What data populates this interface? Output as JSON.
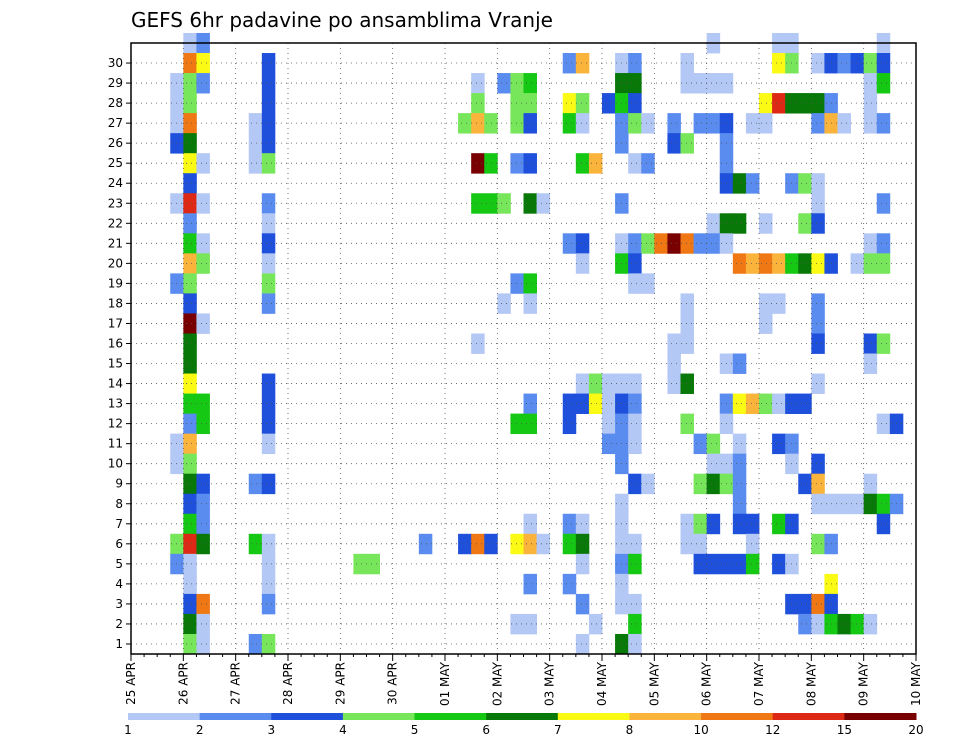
{
  "chart_data": {
    "type": "heatmap",
    "title": "GEFS 6hr padavine po ansamblima Vranje",
    "xlabel": "",
    "ylabel": "",
    "x_ticks": [
      "25 APR",
      "26 APR",
      "27 APR",
      "28 APR",
      "29 APR",
      "30 APR",
      "01 MAY",
      "02 MAY",
      "03 MAY",
      "04 MAY",
      "05 MAY",
      "06 MAY",
      "07 MAY",
      "08 MAY",
      "09 MAY",
      "10 MAY"
    ],
    "y_ticks": [
      1,
      2,
      3,
      4,
      5,
      6,
      7,
      8,
      9,
      10,
      11,
      12,
      13,
      14,
      15,
      16,
      17,
      18,
      19,
      20,
      21,
      22,
      23,
      24,
      25,
      26,
      27,
      28,
      29,
      30
    ],
    "step_hours": 6,
    "steps": 60,
    "members": 30,
    "grid": true,
    "color_levels": [
      1,
      2,
      3,
      4,
      5,
      6,
      7,
      8,
      10,
      12,
      15,
      20
    ],
    "colors": [
      "#b4c8f5",
      "#5a8cf0",
      "#1e50dc",
      "#78e65a",
      "#14c814",
      "#087808",
      "#fafa14",
      "#fab43c",
      "#f07814",
      "#dc2814",
      "#780000"
    ],
    "cells": [
      [
        4,
        30,
        1
      ],
      [
        5,
        30,
        2
      ],
      [
        44,
        30,
        1
      ],
      [
        49,
        30,
        1
      ],
      [
        50,
        30,
        1
      ],
      [
        57,
        30,
        1
      ],
      [
        4,
        29,
        9
      ],
      [
        5,
        29,
        7
      ],
      [
        10,
        29,
        3
      ],
      [
        33,
        29,
        2
      ],
      [
        34,
        29,
        8
      ],
      [
        37,
        29,
        1
      ],
      [
        38,
        29,
        2
      ],
      [
        42,
        29,
        1
      ],
      [
        49,
        29,
        7
      ],
      [
        50,
        29,
        4
      ],
      [
        52,
        29,
        1
      ],
      [
        53,
        29,
        3
      ],
      [
        54,
        29,
        2
      ],
      [
        55,
        29,
        3
      ],
      [
        56,
        29,
        4
      ],
      [
        57,
        29,
        3
      ],
      [
        3,
        28,
        1
      ],
      [
        4,
        28,
        4
      ],
      [
        5,
        28,
        2
      ],
      [
        10,
        28,
        3
      ],
      [
        26,
        28,
        1
      ],
      [
        28,
        28,
        2
      ],
      [
        29,
        28,
        4
      ],
      [
        30,
        28,
        5
      ],
      [
        37,
        28,
        6
      ],
      [
        38,
        28,
        6
      ],
      [
        42,
        28,
        1
      ],
      [
        43,
        28,
        1
      ],
      [
        44,
        28,
        1
      ],
      [
        45,
        28,
        1
      ],
      [
        56,
        28,
        1
      ],
      [
        57,
        28,
        5
      ],
      [
        3,
        27,
        1
      ],
      [
        4,
        27,
        4
      ],
      [
        10,
        27,
        3
      ],
      [
        26,
        27,
        4
      ],
      [
        29,
        27,
        4
      ],
      [
        30,
        27,
        4
      ],
      [
        33,
        27,
        7
      ],
      [
        34,
        27,
        4
      ],
      [
        36,
        27,
        3
      ],
      [
        37,
        27,
        5
      ],
      [
        38,
        27,
        3
      ],
      [
        48,
        27,
        7
      ],
      [
        49,
        27,
        10
      ],
      [
        50,
        27,
        6
      ],
      [
        51,
        27,
        6
      ],
      [
        52,
        27,
        6
      ],
      [
        53,
        27,
        2
      ],
      [
        56,
        27,
        1
      ],
      [
        3,
        26,
        1
      ],
      [
        4,
        26,
        9
      ],
      [
        9,
        26,
        1
      ],
      [
        10,
        26,
        3
      ],
      [
        25,
        26,
        4
      ],
      [
        26,
        26,
        8
      ],
      [
        27,
        26,
        4
      ],
      [
        29,
        26,
        4
      ],
      [
        30,
        26,
        3
      ],
      [
        33,
        26,
        5
      ],
      [
        34,
        26,
        1
      ],
      [
        37,
        26,
        2
      ],
      [
        38,
        26,
        4
      ],
      [
        39,
        26,
        1
      ],
      [
        41,
        26,
        2
      ],
      [
        43,
        26,
        2
      ],
      [
        44,
        26,
        2
      ],
      [
        45,
        26,
        3
      ],
      [
        47,
        26,
        1
      ],
      [
        48,
        26,
        1
      ],
      [
        52,
        26,
        2
      ],
      [
        53,
        26,
        8
      ],
      [
        54,
        26,
        1
      ],
      [
        56,
        26,
        1
      ],
      [
        57,
        26,
        2
      ],
      [
        3,
        25,
        3
      ],
      [
        4,
        25,
        6
      ],
      [
        9,
        25,
        1
      ],
      [
        10,
        25,
        3
      ],
      [
        37,
        25,
        2
      ],
      [
        41,
        25,
        3
      ],
      [
        42,
        25,
        4
      ],
      [
        45,
        25,
        2
      ],
      [
        4,
        24,
        7
      ],
      [
        5,
        24,
        1
      ],
      [
        9,
        24,
        1
      ],
      [
        10,
        24,
        4
      ],
      [
        26,
        24,
        11
      ],
      [
        27,
        24,
        5
      ],
      [
        29,
        24,
        2
      ],
      [
        30,
        24,
        3
      ],
      [
        34,
        24,
        5
      ],
      [
        35,
        24,
        8
      ],
      [
        38,
        24,
        1
      ],
      [
        39,
        24,
        2
      ],
      [
        45,
        24,
        2
      ],
      [
        4,
        23,
        3
      ],
      [
        45,
        23,
        3
      ],
      [
        46,
        23,
        6
      ],
      [
        47,
        23,
        2
      ],
      [
        50,
        23,
        2
      ],
      [
        51,
        23,
        4
      ],
      [
        52,
        23,
        1
      ],
      [
        3,
        22,
        1
      ],
      [
        4,
        22,
        10
      ],
      [
        5,
        22,
        1
      ],
      [
        10,
        22,
        2
      ],
      [
        26,
        22,
        5
      ],
      [
        27,
        22,
        5
      ],
      [
        28,
        22,
        4
      ],
      [
        30,
        22,
        6
      ],
      [
        31,
        22,
        1
      ],
      [
        37,
        22,
        2
      ],
      [
        52,
        22,
        1
      ],
      [
        57,
        22,
        2
      ],
      [
        4,
        21,
        2
      ],
      [
        10,
        21,
        1
      ],
      [
        44,
        21,
        1
      ],
      [
        45,
        21,
        6
      ],
      [
        46,
        21,
        6
      ],
      [
        48,
        21,
        1
      ],
      [
        51,
        21,
        4
      ],
      [
        52,
        21,
        3
      ],
      [
        4,
        20,
        5
      ],
      [
        5,
        20,
        1
      ],
      [
        10,
        20,
        3
      ],
      [
        33,
        20,
        2
      ],
      [
        34,
        20,
        3
      ],
      [
        37,
        20,
        1
      ],
      [
        38,
        20,
        2
      ],
      [
        39,
        20,
        4
      ],
      [
        40,
        20,
        9
      ],
      [
        41,
        20,
        11
      ],
      [
        42,
        20,
        9
      ],
      [
        43,
        20,
        2
      ],
      [
        44,
        20,
        2
      ],
      [
        45,
        20,
        1
      ],
      [
        56,
        20,
        1
      ],
      [
        57,
        20,
        2
      ],
      [
        4,
        19,
        8
      ],
      [
        5,
        19,
        4
      ],
      [
        10,
        19,
        1
      ],
      [
        34,
        19,
        1
      ],
      [
        37,
        19,
        5
      ],
      [
        38,
        19,
        3
      ],
      [
        46,
        19,
        9
      ],
      [
        47,
        19,
        8
      ],
      [
        48,
        19,
        9
      ],
      [
        49,
        19,
        8
      ],
      [
        50,
        19,
        5
      ],
      [
        51,
        19,
        6
      ],
      [
        52,
        19,
        7
      ],
      [
        53,
        19,
        3
      ],
      [
        55,
        19,
        1
      ],
      [
        56,
        19,
        4
      ],
      [
        57,
        19,
        4
      ],
      [
        3,
        18,
        2
      ],
      [
        4,
        18,
        4
      ],
      [
        10,
        18,
        4
      ],
      [
        29,
        18,
        2
      ],
      [
        30,
        18,
        5
      ],
      [
        38,
        18,
        1
      ],
      [
        39,
        18,
        1
      ],
      [
        4,
        17,
        3
      ],
      [
        10,
        17,
        2
      ],
      [
        28,
        17,
        1
      ],
      [
        30,
        17,
        1
      ],
      [
        42,
        17,
        1
      ],
      [
        48,
        17,
        1
      ],
      [
        49,
        17,
        1
      ],
      [
        52,
        17,
        2
      ],
      [
        4,
        16,
        11
      ],
      [
        5,
        16,
        1
      ],
      [
        42,
        16,
        1
      ],
      [
        48,
        16,
        1
      ],
      [
        52,
        16,
        2
      ],
      [
        4,
        15,
        6
      ],
      [
        26,
        15,
        1
      ],
      [
        41,
        15,
        1
      ],
      [
        42,
        15,
        1
      ],
      [
        52,
        15,
        3
      ],
      [
        56,
        15,
        3
      ],
      [
        57,
        15,
        4
      ],
      [
        4,
        14,
        6
      ],
      [
        41,
        14,
        1
      ],
      [
        45,
        14,
        1
      ],
      [
        46,
        14,
        2
      ],
      [
        56,
        14,
        1
      ],
      [
        4,
        13,
        7
      ],
      [
        10,
        13,
        3
      ],
      [
        34,
        13,
        1
      ],
      [
        35,
        13,
        4
      ],
      [
        36,
        13,
        1
      ],
      [
        37,
        13,
        1
      ],
      [
        38,
        13,
        1
      ],
      [
        41,
        13,
        1
      ],
      [
        42,
        13,
        6
      ],
      [
        52,
        13,
        1
      ],
      [
        4,
        12,
        5
      ],
      [
        5,
        12,
        5
      ],
      [
        10,
        12,
        3
      ],
      [
        30,
        12,
        2
      ],
      [
        33,
        12,
        3
      ],
      [
        34,
        12,
        3
      ],
      [
        35,
        12,
        7
      ],
      [
        36,
        12,
        1
      ],
      [
        37,
        12,
        3
      ],
      [
        38,
        12,
        2
      ],
      [
        45,
        12,
        2
      ],
      [
        46,
        12,
        7
      ],
      [
        47,
        12,
        8
      ],
      [
        48,
        12,
        4
      ],
      [
        49,
        12,
        1
      ],
      [
        50,
        12,
        3
      ],
      [
        51,
        12,
        3
      ],
      [
        4,
        11,
        2
      ],
      [
        5,
        11,
        5
      ],
      [
        10,
        11,
        3
      ],
      [
        29,
        11,
        5
      ],
      [
        30,
        11,
        5
      ],
      [
        33,
        11,
        3
      ],
      [
        36,
        11,
        1
      ],
      [
        37,
        11,
        2
      ],
      [
        38,
        11,
        1
      ],
      [
        42,
        11,
        4
      ],
      [
        45,
        11,
        1
      ],
      [
        57,
        11,
        1
      ],
      [
        58,
        11,
        3
      ],
      [
        3,
        10,
        1
      ],
      [
        4,
        10,
        8
      ],
      [
        10,
        10,
        1
      ],
      [
        36,
        10,
        2
      ],
      [
        37,
        10,
        2
      ],
      [
        38,
        10,
        1
      ],
      [
        43,
        10,
        2
      ],
      [
        44,
        10,
        4
      ],
      [
        46,
        10,
        1
      ],
      [
        49,
        10,
        3
      ],
      [
        50,
        10,
        2
      ],
      [
        3,
        9,
        1
      ],
      [
        4,
        9,
        4
      ],
      [
        37,
        9,
        2
      ],
      [
        44,
        9,
        1
      ],
      [
        45,
        9,
        1
      ],
      [
        46,
        9,
        2
      ],
      [
        50,
        9,
        1
      ],
      [
        52,
        9,
        3
      ],
      [
        4,
        8,
        6
      ],
      [
        5,
        8,
        3
      ],
      [
        9,
        8,
        2
      ],
      [
        10,
        8,
        3
      ],
      [
        38,
        8,
        3
      ],
      [
        39,
        8,
        1
      ],
      [
        43,
        8,
        4
      ],
      [
        44,
        8,
        6
      ],
      [
        45,
        8,
        4
      ],
      [
        46,
        8,
        2
      ],
      [
        51,
        8,
        3
      ],
      [
        52,
        8,
        8
      ],
      [
        56,
        8,
        1
      ],
      [
        4,
        7,
        3
      ],
      [
        5,
        7,
        2
      ],
      [
        37,
        7,
        1
      ],
      [
        46,
        7,
        2
      ],
      [
        52,
        7,
        1
      ],
      [
        53,
        7,
        1
      ],
      [
        54,
        7,
        1
      ],
      [
        55,
        7,
        1
      ],
      [
        56,
        7,
        6
      ],
      [
        57,
        7,
        5
      ],
      [
        58,
        7,
        2
      ],
      [
        4,
        6,
        5
      ],
      [
        5,
        6,
        2
      ],
      [
        30,
        6,
        1
      ],
      [
        33,
        6,
        2
      ],
      [
        34,
        6,
        1
      ],
      [
        37,
        6,
        1
      ],
      [
        42,
        6,
        1
      ],
      [
        43,
        6,
        4
      ],
      [
        44,
        6,
        3
      ],
      [
        46,
        6,
        3
      ],
      [
        47,
        6,
        3
      ],
      [
        49,
        6,
        5
      ],
      [
        50,
        6,
        3
      ],
      [
        57,
        6,
        3
      ],
      [
        3,
        5,
        4
      ],
      [
        4,
        5,
        10
      ],
      [
        5,
        5,
        6
      ],
      [
        9,
        5,
        5
      ],
      [
        10,
        5,
        1
      ],
      [
        22,
        5,
        2
      ],
      [
        25,
        5,
        3
      ],
      [
        26,
        5,
        9
      ],
      [
        27,
        5,
        3
      ],
      [
        29,
        5,
        7
      ],
      [
        30,
        5,
        8
      ],
      [
        31,
        5,
        1
      ],
      [
        33,
        5,
        5
      ],
      [
        34,
        5,
        6
      ],
      [
        37,
        5,
        1
      ],
      [
        38,
        5,
        1
      ],
      [
        42,
        5,
        1
      ],
      [
        43,
        5,
        1
      ],
      [
        47,
        5,
        1
      ],
      [
        52,
        5,
        4
      ],
      [
        53,
        5,
        2
      ],
      [
        3,
        4,
        2
      ],
      [
        4,
        4,
        1
      ],
      [
        10,
        4,
        1
      ],
      [
        17,
        4,
        4
      ],
      [
        18,
        4,
        4
      ],
      [
        34,
        4,
        1
      ],
      [
        37,
        4,
        2
      ],
      [
        38,
        4,
        5
      ],
      [
        43,
        4,
        3
      ],
      [
        44,
        4,
        3
      ],
      [
        45,
        4,
        3
      ],
      [
        46,
        4,
        3
      ],
      [
        47,
        4,
        5
      ],
      [
        49,
        4,
        3
      ],
      [
        50,
        4,
        1
      ],
      [
        4,
        3,
        1
      ],
      [
        10,
        3,
        1
      ],
      [
        30,
        3,
        2
      ],
      [
        33,
        3,
        2
      ],
      [
        37,
        3,
        1
      ],
      [
        53,
        3,
        7
      ],
      [
        4,
        2,
        3
      ],
      [
        5,
        2,
        9
      ],
      [
        10,
        2,
        2
      ],
      [
        34,
        2,
        2
      ],
      [
        37,
        2,
        1
      ],
      [
        38,
        2,
        1
      ],
      [
        50,
        2,
        3
      ],
      [
        51,
        2,
        3
      ],
      [
        52,
        2,
        9
      ],
      [
        53,
        2,
        3
      ],
      [
        4,
        1,
        6
      ],
      [
        5,
        1,
        1
      ],
      [
        29,
        1,
        1
      ],
      [
        30,
        1,
        1
      ],
      [
        35,
        1,
        1
      ],
      [
        38,
        1,
        5
      ],
      [
        51,
        1,
        2
      ],
      [
        52,
        1,
        1
      ],
      [
        53,
        1,
        5
      ],
      [
        54,
        1,
        6
      ],
      [
        55,
        1,
        5
      ],
      [
        56,
        1,
        1
      ],
      [
        4,
        0,
        4
      ],
      [
        5,
        0,
        1
      ],
      [
        9,
        0,
        2
      ],
      [
        10,
        0,
        4
      ],
      [
        34,
        0,
        1
      ],
      [
        37,
        0,
        6
      ],
      [
        38,
        0,
        1
      ]
    ]
  }
}
